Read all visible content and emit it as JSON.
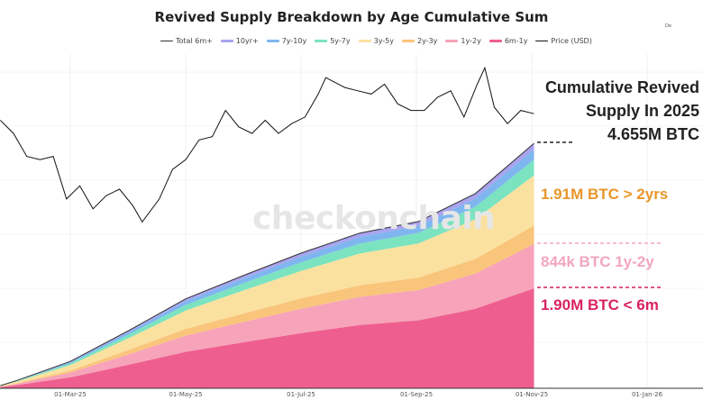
{
  "corner_text": "De",
  "watermark": "checkonchain",
  "chart_data": {
    "type": "area",
    "title": "Revived Supply Breakdown by Age Cumulative Sum",
    "legend_position": "top",
    "legend": [
      {
        "name": "Total 6m+",
        "color": "#333333",
        "style": "line"
      },
      {
        "name": "10yr+",
        "color": "#a9a3ee",
        "style": "area"
      },
      {
        "name": "7y-10y",
        "color": "#7fb6ef",
        "style": "area"
      },
      {
        "name": "5y-7y",
        "color": "#7be3c0",
        "style": "area"
      },
      {
        "name": "3y-5y",
        "color": "#fbe1a0",
        "style": "area"
      },
      {
        "name": "2y-3y",
        "color": "#f9c57a",
        "style": "area"
      },
      {
        "name": "1y-2y",
        "color": "#f7a3b9",
        "style": "area"
      },
      {
        "name": "6m-1y",
        "color": "#ee5f8f",
        "style": "area"
      },
      {
        "name": "Price (USD)",
        "color": "#111111",
        "style": "line"
      }
    ],
    "x_ticks": [
      "01-Mar-25",
      "01-May-25",
      "01-Jul-25",
      "01-Sep-25",
      "01-Nov-25",
      "01-Jan-26"
    ],
    "stack_dates": [
      "2025-01-23",
      "2025-02-01",
      "2025-03-01",
      "2025-04-01",
      "2025-05-01",
      "2025-06-01",
      "2025-07-01",
      "2025-08-01",
      "2025-09-01",
      "2025-10-01",
      "2025-11-01"
    ],
    "stack_unit": "M BTC",
    "series": [
      {
        "name": "6m-1y",
        "values": [
          0.02,
          0.061,
          0.208,
          0.449,
          0.694,
          0.877,
          1.049,
          1.204,
          1.293,
          1.51,
          1.9
        ]
      },
      {
        "name": "1y-2y",
        "values": [
          0.009,
          0.027,
          0.092,
          0.199,
          0.308,
          0.389,
          0.465,
          0.534,
          0.574,
          0.67,
          0.844
        ]
      },
      {
        "name": "2y-3y",
        "values": [
          0.004,
          0.011,
          0.038,
          0.083,
          0.128,
          0.161,
          0.193,
          0.221,
          0.238,
          0.278,
          0.35
        ]
      },
      {
        "name": "3y-5y",
        "values": [
          0.01,
          0.031,
          0.104,
          0.224,
          0.347,
          0.439,
          0.524,
          0.602,
          0.647,
          0.755,
          0.95
        ]
      },
      {
        "name": "5y-7y",
        "values": [
          0.003,
          0.01,
          0.033,
          0.07,
          0.109,
          0.138,
          0.164,
          0.189,
          0.203,
          0.237,
          0.3
        ]
      },
      {
        "name": "7y-10y",
        "values": [
          0.002,
          0.006,
          0.022,
          0.047,
          0.073,
          0.092,
          0.11,
          0.127,
          0.136,
          0.159,
          0.2
        ]
      },
      {
        "name": "10yr+",
        "values": [
          0.002,
          0.004,
          0.013,
          0.028,
          0.041,
          0.054,
          0.065,
          0.073,
          0.079,
          0.091,
          0.111
        ]
      }
    ],
    "price": {
      "name": "Price (USD)",
      "dates": [
        "2025-01-23",
        "2025-01-30",
        "2025-02-06",
        "2025-02-13",
        "2025-02-20",
        "2025-02-27",
        "2025-03-06",
        "2025-03-13",
        "2025-03-20",
        "2025-03-27",
        "2025-04-03",
        "2025-04-08",
        "2025-04-17",
        "2025-04-24",
        "2025-05-01",
        "2025-05-08",
        "2025-05-15",
        "2025-05-22",
        "2025-05-29",
        "2025-06-05",
        "2025-06-12",
        "2025-06-19",
        "2025-06-26",
        "2025-07-03",
        "2025-07-10",
        "2025-07-14",
        "2025-07-24",
        "2025-07-31",
        "2025-08-07",
        "2025-08-14",
        "2025-08-21",
        "2025-08-28",
        "2025-09-04",
        "2025-09-11",
        "2025-09-18",
        "2025-09-25",
        "2025-10-02",
        "2025-10-06",
        "2025-10-11",
        "2025-10-18",
        "2025-10-25",
        "2025-11-01"
      ],
      "values": [
        108000,
        104000,
        97000,
        96000,
        97000,
        84000,
        88000,
        81000,
        85000,
        87000,
        82000,
        77000,
        84000,
        93000,
        96000,
        102000,
        103000,
        111000,
        106000,
        104000,
        108000,
        104000,
        107000,
        109000,
        116000,
        121000,
        118000,
        117000,
        116000,
        119000,
        113000,
        111000,
        111000,
        115000,
        117000,
        109000,
        119000,
        124000,
        112000,
        107000,
        111000,
        110000
      ]
    },
    "annotations": {
      "headline": [
        "Cumulative Revived",
        "Supply In 2025",
        "4.655M BTC"
      ],
      "gt_2yrs": {
        "text": "1.91M BTC > 2yrs",
        "color": "#e8962a"
      },
      "y1_2": {
        "text": "844k BTC 1y-2y",
        "color": "#f2a6bf"
      },
      "lt_6m": {
        "text": "1.90M BTC < 6m",
        "color": "#d9235f"
      }
    }
  }
}
